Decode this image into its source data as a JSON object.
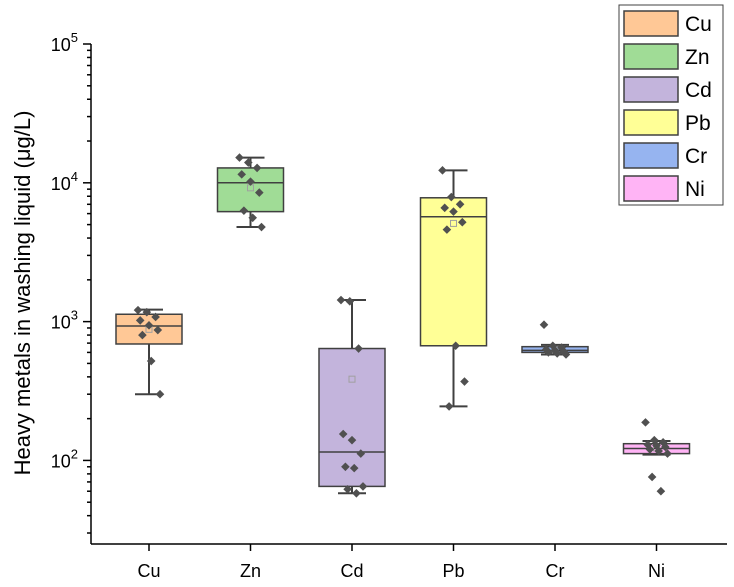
{
  "chart_data": {
    "type": "box",
    "title": "",
    "xlabel": "",
    "ylabel": "Heavy metals in washing liquid (μg/L)",
    "yscale": "log",
    "ylim": [
      25,
      100000
    ],
    "y_ticks": [
      {
        "base": "10",
        "exp": "2",
        "value": 100
      },
      {
        "base": "10",
        "exp": "3",
        "value": 1000
      },
      {
        "base": "10",
        "exp": "4",
        "value": 10000
      },
      {
        "base": "10",
        "exp": "5",
        "value": 100000
      }
    ],
    "categories": [
      "Cu",
      "Zn",
      "Cd",
      "Pb",
      "Cr",
      "Ni"
    ],
    "series": [
      {
        "name": "Cu",
        "color": "#FFC896",
        "whisker_low": 300,
        "q1": 690,
        "median": 930,
        "mean": 880,
        "q3": 1130,
        "whisker_high": 1220,
        "points": [
          1210,
          1170,
          1080,
          1020,
          940,
          870,
          800,
          520,
          300
        ]
      },
      {
        "name": "Zn",
        "color": "#A0DC96",
        "whisker_low": 4800,
        "q1": 6200,
        "median": 10000,
        "mean": 9200,
        "q3": 12800,
        "whisker_high": 15200,
        "points": [
          15200,
          14000,
          12800,
          11500,
          10200,
          8500,
          6300,
          5600,
          4800
        ]
      },
      {
        "name": "Cd",
        "color": "#C3B4DC",
        "whisker_low": 58,
        "q1": 65,
        "median": 115,
        "mean": 385,
        "q3": 640,
        "whisker_high": 1430,
        "points": [
          1430,
          1400,
          640,
          155,
          140,
          112,
          90,
          88,
          65,
          62,
          58
        ]
      },
      {
        "name": "Pb",
        "color": "#FFFF96",
        "whisker_low": 245,
        "q1": 670,
        "median": 5700,
        "mean": 5100,
        "q3": 7800,
        "whisker_high": 12300,
        "points": [
          12300,
          7900,
          7000,
          6600,
          6200,
          5200,
          4600,
          670,
          370,
          245
        ]
      },
      {
        "name": "Cr",
        "color": "#96B4F0",
        "whisker_low": 580,
        "q1": 600,
        "median": 620,
        "mean": 625,
        "q3": 660,
        "whisker_high": 680,
        "points": [
          950,
          670,
          650,
          630,
          620,
          610,
          600,
          590,
          580
        ]
      },
      {
        "name": "Ni",
        "color": "#FFB4F5",
        "whisker_low": 110,
        "q1": 112,
        "median": 122,
        "mean": 123,
        "q3": 132,
        "whisker_high": 138,
        "points": [
          188,
          140,
          135,
          130,
          128,
          125,
          120,
          117,
          112,
          76,
          60
        ]
      }
    ],
    "legend": {
      "placement": "top-right",
      "entries": [
        "Cu",
        "Zn",
        "Cd",
        "Pb",
        "Cr",
        "Ni"
      ]
    }
  },
  "style": {
    "axis_color": "#000000",
    "box_edge_color": "#404040",
    "point_color": "#505050",
    "mean_marker_color": "#A0A0A0"
  }
}
